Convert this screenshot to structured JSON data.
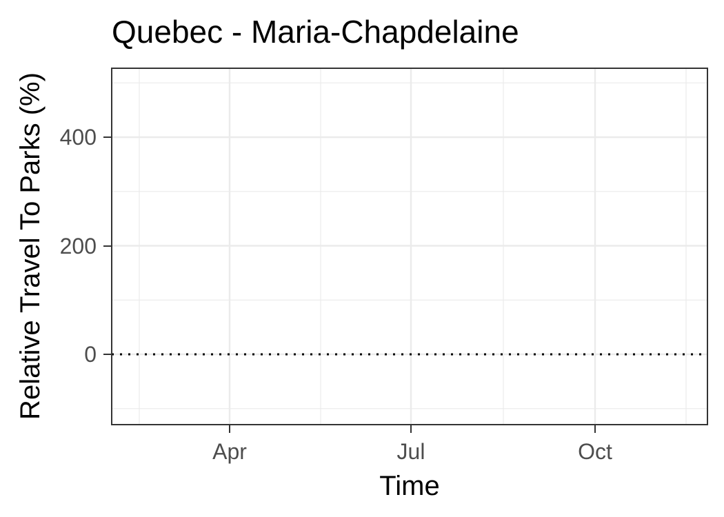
{
  "chart_data": {
    "type": "line",
    "title": "Quebec - Maria-Chapdelaine",
    "xlabel": "Time",
    "ylabel": "Relative Travel To Parks (%)",
    "x_ticks": [
      "Apr",
      "Jul",
      "Oct"
    ],
    "y_ticks": [
      0,
      200,
      400
    ],
    "ylim": [
      -130,
      530
    ],
    "grid": true,
    "reference_line": {
      "y": 0,
      "style": "dotted",
      "color": "#000000"
    },
    "series": []
  }
}
